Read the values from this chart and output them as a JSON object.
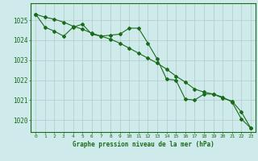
{
  "line1_x": [
    0,
    1,
    2,
    3,
    4,
    5,
    6,
    7,
    8,
    9,
    10,
    11,
    12,
    13,
    14,
    15,
    16,
    17,
    18,
    19,
    20,
    21,
    22,
    23
  ],
  "line1_y": [
    1025.3,
    1024.65,
    1024.45,
    1024.2,
    1024.65,
    1024.8,
    1024.3,
    1024.2,
    1024.25,
    1024.3,
    1024.6,
    1024.6,
    1023.85,
    1023.05,
    1022.05,
    1022.0,
    1021.05,
    1021.0,
    1021.3,
    1021.3,
    1021.15,
    1020.9,
    1020.05,
    1019.6
  ],
  "line2_x": [
    0,
    1,
    2,
    3,
    4,
    5,
    6,
    7,
    8,
    9,
    10,
    11,
    12,
    13,
    14,
    15,
    16,
    17,
    18,
    19,
    20,
    21,
    22,
    23
  ],
  "line2_y": [
    1025.3,
    1025.15,
    1025.05,
    1024.9,
    1024.7,
    1024.55,
    1024.35,
    1024.2,
    1024.05,
    1023.85,
    1023.6,
    1023.35,
    1023.1,
    1022.85,
    1022.55,
    1022.2,
    1021.9,
    1021.55,
    1021.4,
    1021.3,
    1021.1,
    1020.95,
    1020.4,
    1019.6
  ],
  "line_color": "#1a6b1a",
  "bg_color": "#ceeaea",
  "grid_color": "#b0c8c8",
  "xlabel": "Graphe pression niveau de la mer (hPa)",
  "ylim_min": 1019.4,
  "ylim_max": 1025.85,
  "yticks": [
    1020,
    1021,
    1022,
    1023,
    1024,
    1025
  ],
  "xticks": [
    0,
    1,
    2,
    3,
    4,
    5,
    6,
    7,
    8,
    9,
    10,
    11,
    12,
    13,
    14,
    15,
    16,
    17,
    18,
    19,
    20,
    21,
    22,
    23
  ],
  "figw": 3.2,
  "figh": 2.0,
  "dpi": 100
}
